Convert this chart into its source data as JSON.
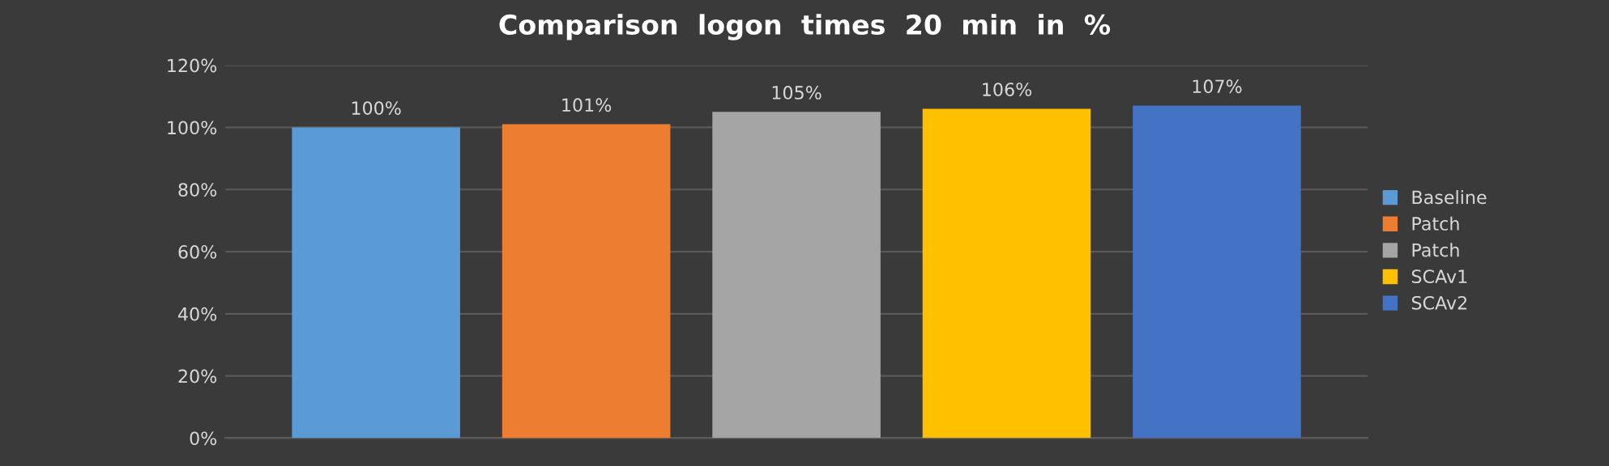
{
  "chart_data": {
    "type": "bar",
    "title": "Comparison  logon  times  20  min  in  %",
    "categories": [
      null
    ],
    "series": [
      {
        "name": "Baseline",
        "color": "#5b9bd5",
        "values": [
          100
        ],
        "value_labels": [
          "100%"
        ]
      },
      {
        "name": "Patch",
        "color": "#ed7d31",
        "values": [
          101
        ],
        "value_labels": [
          "101%"
        ]
      },
      {
        "name": "Patch",
        "color": "#a5a5a5",
        "values": [
          105
        ],
        "value_labels": [
          "105%"
        ]
      },
      {
        "name": "SCAv1",
        "color": "#ffc000",
        "values": [
          106
        ],
        "value_labels": [
          "106%"
        ]
      },
      {
        "name": "SCAv2",
        "color": "#4472c4",
        "values": [
          107
        ],
        "value_labels": [
          "107%"
        ]
      }
    ],
    "ylim": [
      0,
      120
    ],
    "yticks": [
      {
        "value": 0,
        "label": "0%"
      },
      {
        "value": 20,
        "label": "20%"
      },
      {
        "value": 40,
        "label": "40%"
      },
      {
        "value": 60,
        "label": "60%"
      },
      {
        "value": 80,
        "label": "80%"
      },
      {
        "value": 100,
        "label": "100%"
      },
      {
        "value": 120,
        "label": "120%"
      }
    ],
    "grid": "y",
    "legend": "right"
  }
}
